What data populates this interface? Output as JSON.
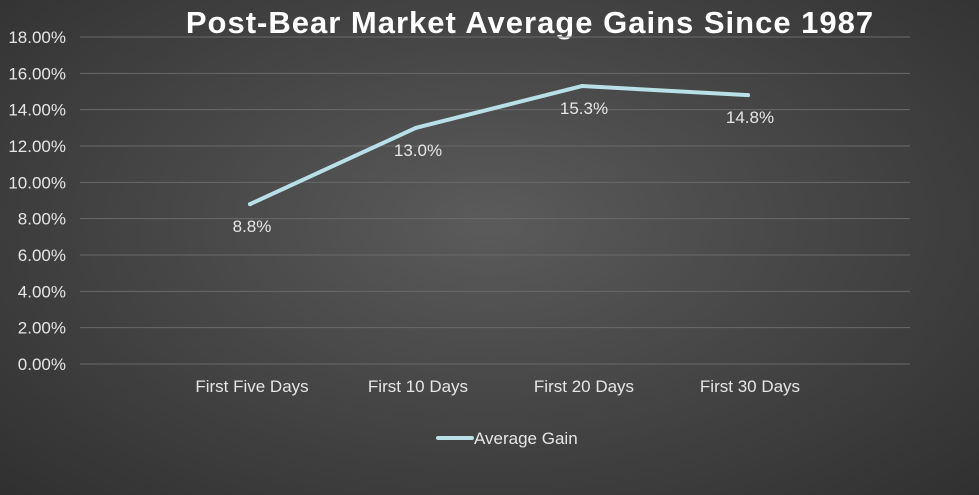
{
  "chart_data": {
    "type": "line",
    "title": "Post-Bear Market Average Gains Since 1987",
    "xlabel": "",
    "ylabel": "",
    "categories": [
      "First Five Days",
      "First 10 Days",
      "First 20 Days",
      "First 30 Days"
    ],
    "series": [
      {
        "name": "Average Gain",
        "values": [
          8.8,
          13.0,
          15.3,
          14.8
        ],
        "labels": [
          "8.8%",
          "13.0%",
          "15.3%",
          "14.8%"
        ],
        "color": "#b8e0e6"
      }
    ],
    "ylim": [
      0,
      18
    ],
    "yticks": [
      0,
      2,
      4,
      6,
      8,
      10,
      12,
      14,
      16,
      18
    ],
    "ytick_labels": [
      "0.00%",
      "2.00%",
      "4.00%",
      "6.00%",
      "8.00%",
      "10.00%",
      "12.00%",
      "14.00%",
      "16.00%",
      "18.00%"
    ],
    "grid": true,
    "legend": "bottom",
    "background_color": "#474747",
    "grid_color": "#6a6a6a",
    "text_color": "#e6e6e6"
  }
}
